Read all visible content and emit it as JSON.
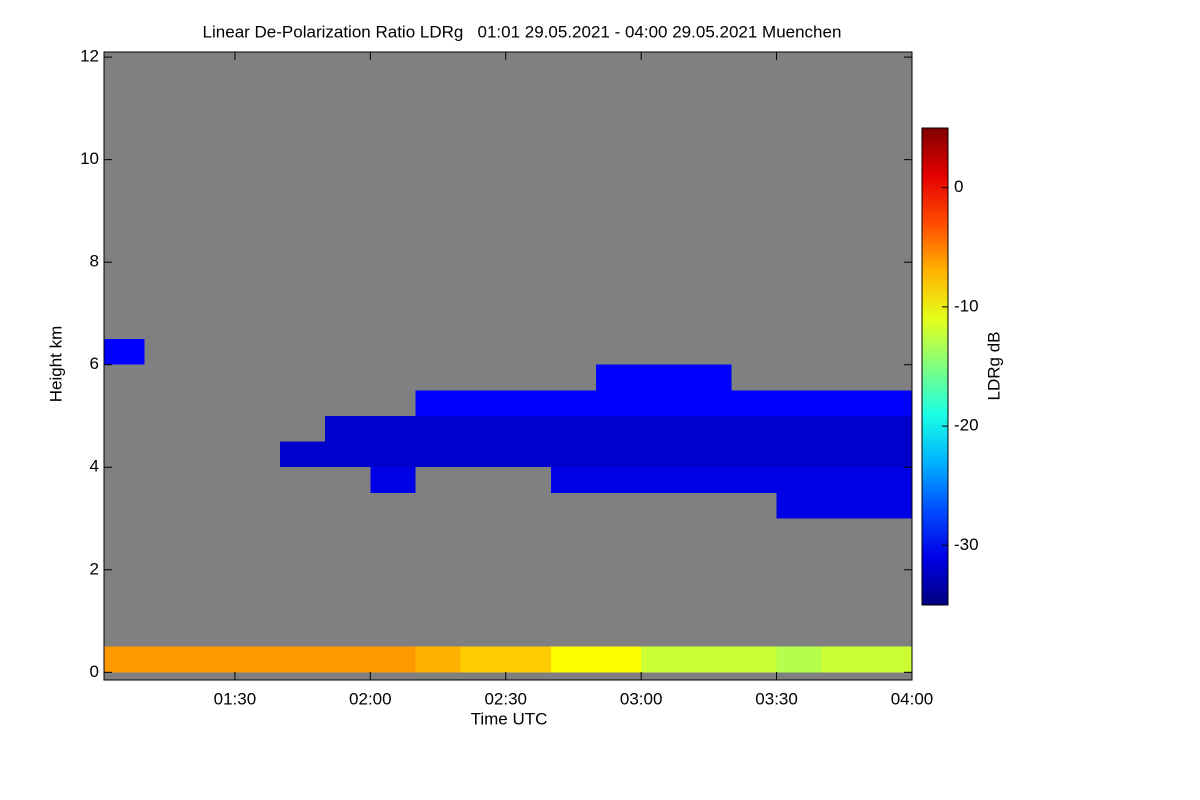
{
  "chart_data": {
    "type": "heatmap",
    "title": "Linear De-Polarization Ratio LDRg   01:01 29.05.2021 - 04:00 29.05.2021 Muenchen",
    "x_label": "Time UTC",
    "y_label": "Height km",
    "colorbar_label": "LDRg dB",
    "xlim": [
      1.0167,
      4.0
    ],
    "xticks": [
      {
        "value": 1.5,
        "label": "01:30"
      },
      {
        "value": 2.0,
        "label": "02:00"
      },
      {
        "value": 2.5,
        "label": "02:30"
      },
      {
        "value": 3.0,
        "label": "03:00"
      },
      {
        "value": 3.5,
        "label": "03:30"
      },
      {
        "value": 4.0,
        "label": "04:00"
      }
    ],
    "ylim": [
      -0.15,
      12.1
    ],
    "yticks": [
      0,
      2,
      4,
      6,
      8,
      10,
      12
    ],
    "clim": [
      -35,
      5
    ],
    "cticks": [
      0,
      -10,
      -20,
      -30
    ],
    "colormap": "jet",
    "background": "#808080",
    "x": [
      1.0167,
      1.1667,
      1.3333,
      1.5,
      1.6667,
      1.8333,
      2.0,
      2.1667,
      2.3333,
      2.5,
      2.6667,
      2.8333,
      3.0,
      3.1667,
      3.3333,
      3.5,
      3.6667,
      3.8333,
      4.0
    ],
    "y": [
      0,
      0.5,
      1,
      1.5,
      2,
      2.5,
      3,
      3.5,
      4,
      4.5,
      5,
      5.5,
      6,
      6.5
    ],
    "z": [
      [
        -6,
        -6,
        -6,
        -6,
        -6,
        -6,
        -6,
        -7,
        -8,
        -8,
        -10,
        -10,
        -12,
        -12,
        -12,
        -13,
        -12,
        -12
      ],
      [
        null,
        null,
        null,
        null,
        null,
        null,
        null,
        null,
        null,
        null,
        null,
        null,
        null,
        null,
        null,
        null,
        null,
        null
      ],
      [
        null,
        null,
        null,
        null,
        null,
        null,
        null,
        null,
        null,
        null,
        null,
        null,
        null,
        null,
        null,
        null,
        null,
        null
      ],
      [
        null,
        null,
        null,
        null,
        null,
        null,
        null,
        null,
        null,
        null,
        null,
        null,
        null,
        null,
        null,
        null,
        null,
        null
      ],
      [
        null,
        null,
        null,
        null,
        null,
        null,
        null,
        null,
        null,
        null,
        null,
        null,
        null,
        null,
        null,
        null,
        null,
        null
      ],
      [
        null,
        null,
        null,
        null,
        null,
        null,
        null,
        null,
        null,
        null,
        null,
        null,
        null,
        null,
        null,
        null,
        null,
        null
      ],
      [
        null,
        null,
        null,
        null,
        null,
        null,
        null,
        null,
        null,
        null,
        null,
        null,
        null,
        null,
        null,
        -31,
        -31,
        -31
      ],
      [
        null,
        null,
        null,
        null,
        null,
        null,
        -31,
        null,
        null,
        null,
        -31,
        -31,
        -31,
        -31,
        -31,
        -31,
        -31,
        -31
      ],
      [
        null,
        null,
        null,
        null,
        -32,
        -32,
        -32,
        -32,
        -32,
        -32,
        -32,
        -32,
        -32,
        -32,
        -32,
        -32,
        -32,
        -32
      ],
      [
        null,
        null,
        null,
        null,
        null,
        -32,
        -32,
        -32,
        -32,
        -32,
        -32,
        -32,
        -32,
        -32,
        -32,
        -32,
        -32,
        -32
      ],
      [
        null,
        null,
        null,
        null,
        null,
        null,
        null,
        -30,
        -30,
        -30,
        -30,
        -30,
        -30,
        -30,
        -30,
        -30,
        -30,
        -30
      ],
      [
        null,
        null,
        null,
        null,
        null,
        null,
        null,
        null,
        null,
        null,
        null,
        -30,
        -30,
        -30,
        null,
        null,
        null,
        null
      ],
      [
        -30,
        null,
        null,
        null,
        null,
        null,
        null,
        null,
        null,
        null,
        null,
        null,
        null,
        null,
        null,
        null,
        null,
        null
      ]
    ]
  }
}
